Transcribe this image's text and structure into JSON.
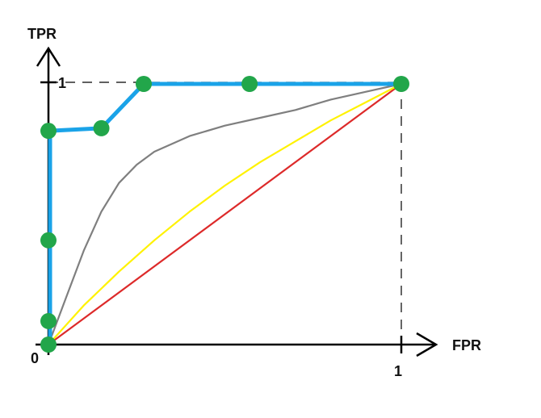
{
  "chart_data": {
    "type": "line",
    "xlabel": "FPR",
    "ylabel": "TPR",
    "origin_label": "0",
    "x_tick_labels": [
      "1"
    ],
    "y_tick_labels": [
      "1"
    ],
    "xlim": [
      0,
      1
    ],
    "ylim": [
      0,
      1
    ],
    "grid": false,
    "legend": "none",
    "series": [
      {
        "color": "#1AA3E8",
        "x": [
          0,
          0,
          0,
          0,
          0.15,
          0.27,
          0.57,
          1
        ],
        "y": [
          0,
          0.09,
          0.4,
          0.82,
          0.83,
          1.0,
          1.0,
          1.0
        ],
        "markers": true,
        "marker_color": "#22A64A"
      },
      {
        "color": "#7F7F7F",
        "x": [
          0,
          0.05,
          0.1,
          0.15,
          0.2,
          0.25,
          0.3,
          0.4,
          0.5,
          0.6,
          0.7,
          0.8,
          0.9,
          1.0
        ],
        "y": [
          0,
          0.18,
          0.36,
          0.51,
          0.62,
          0.69,
          0.74,
          0.8,
          0.84,
          0.87,
          0.9,
          0.94,
          0.97,
          1.0
        ]
      },
      {
        "color": "#FFF200",
        "x": [
          0,
          0.1,
          0.2,
          0.3,
          0.4,
          0.5,
          0.6,
          0.7,
          0.8,
          0.9,
          1.0
        ],
        "y": [
          0,
          0.15,
          0.28,
          0.4,
          0.51,
          0.61,
          0.7,
          0.78,
          0.86,
          0.93,
          1.0
        ]
      },
      {
        "color": "#DD2A2A",
        "x": [
          0,
          1
        ],
        "y": [
          0,
          1
        ]
      }
    ]
  }
}
